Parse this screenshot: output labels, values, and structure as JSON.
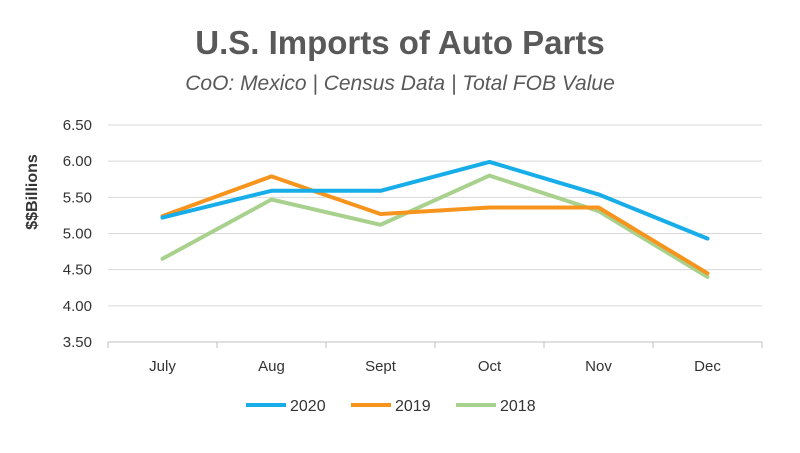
{
  "chart_data": {
    "type": "line",
    "title": "U.S. Imports of Auto Parts",
    "subtitle": "CoO: Mexico | Census Data | Total FOB Value",
    "ylabel": "$$Billions",
    "xlabel": "",
    "categories": [
      "July",
      "Aug",
      "Sept",
      "Oct",
      "Nov",
      "Dec"
    ],
    "ylim": [
      3.5,
      6.5
    ],
    "yticks": [
      "3.50",
      "4.00",
      "4.50",
      "5.00",
      "5.50",
      "6.00",
      "6.50"
    ],
    "grid": true,
    "legend_position": "bottom",
    "series": [
      {
        "name": "2020",
        "color": "#17ADE8",
        "values": [
          5.22,
          5.59,
          5.59,
          5.99,
          5.54,
          4.93
        ]
      },
      {
        "name": "2019",
        "color": "#F7941D",
        "values": [
          5.24,
          5.79,
          5.27,
          5.36,
          5.36,
          4.45
        ]
      },
      {
        "name": "2018",
        "color": "#A9D18E",
        "values": [
          4.65,
          5.47,
          5.12,
          5.8,
          5.31,
          4.4
        ]
      }
    ]
  }
}
